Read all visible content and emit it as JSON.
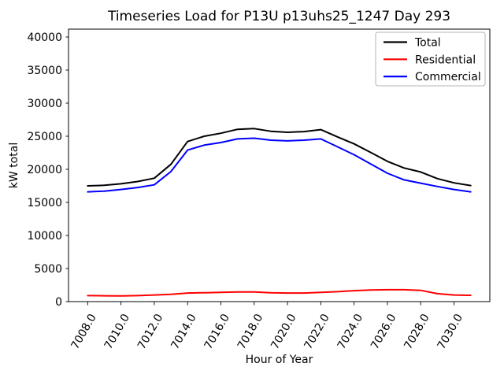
{
  "chart_data": {
    "type": "line",
    "title": "Timeseries Load for P13U p13uhs25_1247  Day 293",
    "xlabel": "Hour of Year",
    "ylabel": "kW total",
    "x": [
      7008,
      7009,
      7010,
      7011,
      7012,
      7013,
      7014,
      7015,
      7016,
      7017,
      7018,
      7019,
      7020,
      7021,
      7022,
      7023,
      7024,
      7025,
      7026,
      7027,
      7028,
      7029,
      7030,
      7031
    ],
    "series": [
      {
        "name": "Total",
        "color": "#000000",
        "values": [
          17500,
          17580,
          17810,
          18150,
          18650,
          20750,
          24200,
          25000,
          25450,
          26050,
          26150,
          25750,
          25600,
          25700,
          26000,
          24900,
          23850,
          22550,
          21200,
          20200,
          19600,
          18600,
          17950,
          17550
        ]
      },
      {
        "name": "Residential",
        "color": "#ff0000",
        "values": [
          900,
          880,
          860,
          900,
          1000,
          1100,
          1300,
          1350,
          1400,
          1450,
          1450,
          1350,
          1300,
          1300,
          1400,
          1500,
          1650,
          1750,
          1800,
          1800,
          1700,
          1200,
          1000,
          950
        ]
      },
      {
        "name": "Commercial",
        "color": "#0000ff",
        "values": [
          16600,
          16700,
          16950,
          17250,
          17650,
          19650,
          22900,
          23650,
          24050,
          24600,
          24700,
          24400,
          24300,
          24400,
          24600,
          23400,
          22200,
          20800,
          19400,
          18400,
          17900,
          17400,
          16950,
          16600
        ]
      }
    ],
    "xlim": [
      7006.85,
      7032.15
    ],
    "ylim": [
      0,
      41190
    ],
    "x_ticks": [
      7008,
      7010,
      7012,
      7014,
      7016,
      7018,
      7020,
      7022,
      7024,
      7026,
      7028,
      7030
    ],
    "x_tick_labels": [
      "7008.0",
      "7010.0",
      "7012.0",
      "7014.0",
      "7016.0",
      "7018.0",
      "7020.0",
      "7022.0",
      "7024.0",
      "7026.0",
      "7028.0",
      "7030.0"
    ],
    "y_ticks": [
      0,
      5000,
      10000,
      15000,
      20000,
      25000,
      30000,
      35000,
      40000
    ],
    "y_tick_labels": [
      "0",
      "5000",
      "10000",
      "15000",
      "20000",
      "25000",
      "30000",
      "35000",
      "40000"
    ],
    "x_tick_rotation_deg": 60,
    "grid": false,
    "legend": {
      "position": "upper right",
      "entries": [
        "Total",
        "Residential",
        "Commercial"
      ]
    }
  },
  "colors": {
    "background": "#ffffff",
    "axis": "#000000",
    "text": "#000000",
    "legend_border": "#b4b4b4",
    "legend_background": "#ffffff"
  }
}
